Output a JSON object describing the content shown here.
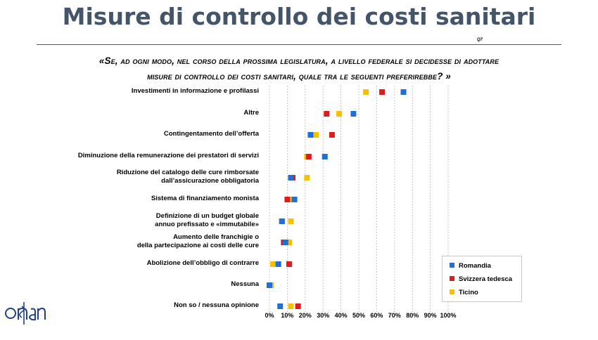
{
  "page": {
    "title": "Misure di controllo dei costi sanitari",
    "question_code": "Q7",
    "question_line1": "«Se, ad ogni modo, nel corso della prossima legislatura, a livello federale si decidesse di adottare",
    "question_line2": "misure di controllo dei costi sanitari, quale tra le seguenti preferirebbe? »",
    "logo_text": "obsan"
  },
  "colors": {
    "title": "#44546a",
    "Romandia": "#1f6fd8",
    "Svizzera tedesca": "#e01b1b",
    "Ticino": "#f9c002",
    "grid": "#b7b7b7"
  },
  "legend": {
    "romandia": "Romandia",
    "svizzera": "Svizzera tedesca",
    "ticino": "Ticino"
  },
  "chart_data": {
    "type": "scatter",
    "categories": [
      "Investimenti in informazione e profilassi",
      "Altre",
      "Contingentamento dell’offerta",
      "Diminuzione della remunerazione dei prestatori di servizi",
      "Riduzione del catalogo delle cure rimborsate\ndall’assicurazione obbligatoria",
      "Sistema di finanziamento monista",
      "Definizione di un budget globale\nannuo prefissato e «immutabile»",
      "Aumento delle franchigie o\ndella partecipazione ai costi delle cure",
      "Abolizione dell’obbligo di contrarre",
      "Nessuna",
      "Non so / nessuna opinione"
    ],
    "series": [
      {
        "name": "Romandia",
        "values": [
          75,
          47,
          23,
          31,
          12,
          14,
          7,
          9,
          5,
          0,
          6
        ]
      },
      {
        "name": "Svizzera tedesca",
        "values": [
          63,
          32,
          35,
          22,
          13,
          10,
          7,
          8,
          11,
          0,
          16
        ]
      },
      {
        "name": "Ticino",
        "values": [
          54,
          39,
          26,
          21,
          21,
          12,
          12,
          11,
          2,
          1,
          12
        ]
      }
    ],
    "x_ticks": [
      "0%",
      "10%",
      "20%",
      "30%",
      "40%",
      "50%",
      "60%",
      "70%",
      "80%",
      "90%",
      "100%"
    ],
    "xlim": [
      0,
      100
    ],
    "grid": true,
    "legend_position": "bottom-right"
  }
}
